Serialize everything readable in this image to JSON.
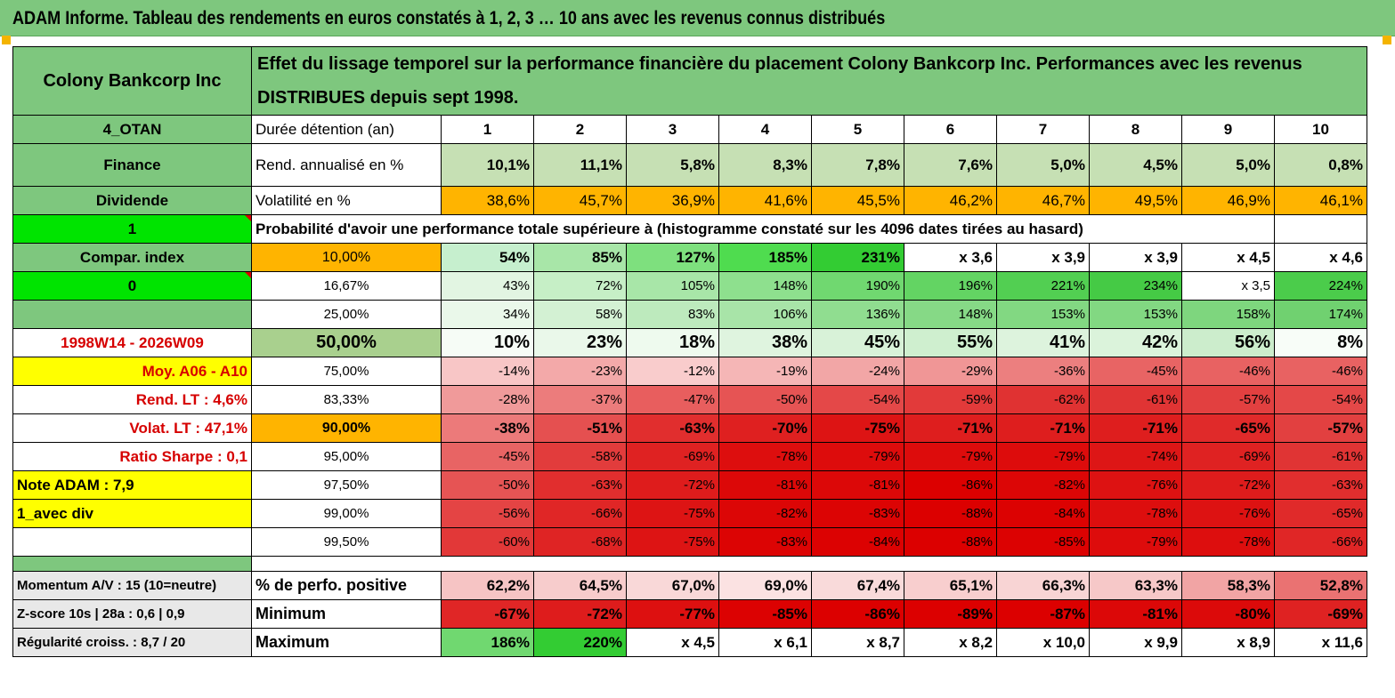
{
  "page_title": "ADAM Informe. Tableau des rendements en euros constatés à 1, 2, 3 … 10 ans avec les revenus connus distribués",
  "header": {
    "company": "Colony Bankcorp Inc",
    "description": "Effet du lissage temporel sur la performance financière du placement Colony Bankcorp Inc. Performances avec les revenus DISTRIBUES depuis sept 1998."
  },
  "info_rows": [
    {
      "left": "4_OTAN",
      "label": "Durée détention (an)",
      "values": [
        "1",
        "2",
        "3",
        "4",
        "5",
        "6",
        "7",
        "8",
        "9",
        "10"
      ]
    },
    {
      "left": "Finance",
      "label": "Rend. annualisé en %",
      "values": [
        "10,1%",
        "11,1%",
        "5,8%",
        "8,3%",
        "7,8%",
        "7,6%",
        "5,0%",
        "4,5%",
        "5,0%",
        "0,8%"
      ]
    },
    {
      "left": "Dividende",
      "label": "Volatilité en %",
      "values": [
        "38,6%",
        "45,7%",
        "36,9%",
        "41,6%",
        "45,5%",
        "46,2%",
        "46,7%",
        "49,5%",
        "46,9%",
        "46,1%"
      ]
    }
  ],
  "prob_row": {
    "left": "1",
    "label": "Probabilité d'avoir une performance totale supérieure à (histogramme constaté sur les 4096 dates tirées au hasard)"
  },
  "quantile_rows": [
    {
      "left": "Compar. index",
      "pct": "10,00%",
      "values": [
        "54%",
        "85%",
        "127%",
        "185%",
        "231%",
        "x 3,6",
        "x 3,9",
        "x 3,9",
        "x 4,5",
        "x 4,6"
      ],
      "colors": [
        "#c6efce",
        "#a8e6a8",
        "#7ee07e",
        "#4fdc4f",
        "#33cc33",
        "#ffffff",
        "#ffffff",
        "#ffffff",
        "#ffffff",
        "#ffffff"
      ]
    },
    {
      "left": "0",
      "pct": "16,67%",
      "values": [
        "43%",
        "72%",
        "105%",
        "148%",
        "190%",
        "196%",
        "221%",
        "234%",
        "x 3,5",
        "224%"
      ],
      "colors": [
        "#e2f5e2",
        "#c6efc6",
        "#a8e6a8",
        "#8ee08e",
        "#70d870",
        "#63d463",
        "#52cf52",
        "#45ca45",
        "#ffffff",
        "#4bcc4b"
      ]
    },
    {
      "left": "",
      "pct": "25,00%",
      "values": [
        "34%",
        "58%",
        "83%",
        "106%",
        "136%",
        "148%",
        "153%",
        "153%",
        "158%",
        "174%"
      ],
      "colors": [
        "#eaf8ea",
        "#d3f1d3",
        "#bdeabd",
        "#a8e4a8",
        "#90dd90",
        "#86d986",
        "#82d882",
        "#82d882",
        "#7ed67e",
        "#70d170"
      ]
    },
    {
      "left": "1998W14 - 2026W09",
      "pct": "50,00%",
      "values": [
        "10%",
        "23%",
        "18%",
        "38%",
        "45%",
        "55%",
        "41%",
        "42%",
        "56%",
        "8%"
      ],
      "colors": [
        "#f6fcf6",
        "#eaf8ea",
        "#eefaee",
        "#dff4df",
        "#d8f2d8",
        "#cfefcf",
        "#ddf3dd",
        "#dbf3db",
        "#ccedcc",
        "#f8fdf8"
      ]
    },
    {
      "left": "Moy. A06 - A10",
      "pct": "75,00%",
      "values": [
        "-14%",
        "-23%",
        "-12%",
        "-19%",
        "-24%",
        "-29%",
        "-36%",
        "-45%",
        "-46%",
        "-46%"
      ],
      "colors": [
        "#f8c6c6",
        "#f3a9a9",
        "#f9cccc",
        "#f5b6b6",
        "#f2a6a6",
        "#f09696",
        "#ec7f7f",
        "#e86464",
        "#e86262",
        "#e86262"
      ]
    },
    {
      "left": "Rend. LT :   4,6%",
      "pct": "83,33%",
      "values": [
        "-28%",
        "-37%",
        "-47%",
        "-50%",
        "-54%",
        "-59%",
        "-62%",
        "-61%",
        "-57%",
        "-54%"
      ],
      "colors": [
        "#f09a9a",
        "#ec7c7c",
        "#e85e5e",
        "#e65454",
        "#e44848",
        "#e23a3a",
        "#e03232",
        "#e03434",
        "#e24040",
        "#e44848"
      ]
    },
    {
      "left": "Volat. LT :   47,1%",
      "pct": "90,00%",
      "values": [
        "-38%",
        "-51%",
        "-63%",
        "-70%",
        "-75%",
        "-71%",
        "-71%",
        "-71%",
        "-65%",
        "-57%"
      ],
      "colors": [
        "#ec7a7a",
        "#e55050",
        "#e12e2e",
        "#df2020",
        "#dd1414",
        "#de1e1e",
        "#de1e1e",
        "#de1e1e",
        "#e02a2a",
        "#e24040"
      ]
    },
    {
      "left": "Ratio Sharpe :    0,1",
      "pct": "95,00%",
      "values": [
        "-45%",
        "-58%",
        "-69%",
        "-78%",
        "-79%",
        "-79%",
        "-79%",
        "-74%",
        "-69%",
        "-61%"
      ],
      "colors": [
        "#e86464",
        "#e23c3c",
        "#df2222",
        "#dd0e0e",
        "#dd0c0c",
        "#dd0c0c",
        "#dd0c0c",
        "#dd1616",
        "#df2222",
        "#e03434"
      ]
    },
    {
      "left": "Note ADAM : 7,9",
      "pct": "97,50%",
      "values": [
        "-50%",
        "-63%",
        "-72%",
        "-81%",
        "-81%",
        "-86%",
        "-82%",
        "-76%",
        "-72%",
        "-63%"
      ],
      "colors": [
        "#e65454",
        "#e12e2e",
        "#de1c1c",
        "#dc0808",
        "#dc0808",
        "#dc0000",
        "#dc0606",
        "#dd1212",
        "#de1c1c",
        "#e12e2e"
      ]
    },
    {
      "left": "1_avec div",
      "pct": "99,00%",
      "values": [
        "-56%",
        "-66%",
        "-75%",
        "-82%",
        "-83%",
        "-88%",
        "-84%",
        "-78%",
        "-76%",
        "-65%"
      ],
      "colors": [
        "#e44444",
        "#e02626",
        "#dd1414",
        "#dc0606",
        "#dc0404",
        "#dc0000",
        "#dc0202",
        "#dd0e0e",
        "#dd1212",
        "#e02a2a"
      ]
    },
    {
      "left": "",
      "pct": "99,50%",
      "values": [
        "-60%",
        "-68%",
        "-75%",
        "-83%",
        "-84%",
        "-88%",
        "-85%",
        "-79%",
        "-78%",
        "-66%"
      ],
      "colors": [
        "#e23838",
        "#df2424",
        "#dd1414",
        "#dc0404",
        "#dc0202",
        "#dc0000",
        "#dc0202",
        "#dd0c0c",
        "#dd0e0e",
        "#e02626"
      ]
    }
  ],
  "bottom_rows": [
    {
      "left": "Momentum A/V : 15 (10=neutre)",
      "label": "% de perfo. positive",
      "values": [
        "62,2%",
        "64,5%",
        "67,0%",
        "69,0%",
        "67,4%",
        "65,1%",
        "66,3%",
        "63,3%",
        "58,3%",
        "52,8%"
      ],
      "colors": [
        "#f6c4c4",
        "#f7cccc",
        "#f9d8d8",
        "#fbe2e2",
        "#f9dada",
        "#f8cece",
        "#f8d4d4",
        "#f6c8c8",
        "#f1a4a4",
        "#ea7272"
      ]
    },
    {
      "left": "Z-score 10s | 28a : 0,6 | 0,9",
      "label": "Minimum",
      "values": [
        "-67%",
        "-72%",
        "-77%",
        "-85%",
        "-86%",
        "-89%",
        "-87%",
        "-81%",
        "-80%",
        "-69%"
      ],
      "colors": [
        "#e02626",
        "#de1c1c",
        "#dd1010",
        "#dc0202",
        "#dc0000",
        "#dc0000",
        "#dc0000",
        "#dc0808",
        "#dc0a0a",
        "#df2222"
      ]
    },
    {
      "left": "Régularité croiss. : 8,7 / 20",
      "label": "Maximum",
      "values": [
        "186%",
        "220%",
        "x 4,5",
        "x 6,1",
        "x 8,7",
        "x 8,2",
        "x 10,0",
        "x 9,9",
        "x 8,9",
        "x 11,6"
      ],
      "colors": [
        "#70d870",
        "#33cc33",
        "#ffffff",
        "#ffffff",
        "#ffffff",
        "#ffffff",
        "#ffffff",
        "#ffffff",
        "#ffffff",
        "#ffffff"
      ]
    }
  ],
  "colors": {
    "band_green": "#7ec77e",
    "orange": "#ffb400",
    "bright_green": "#00e400",
    "yellow": "#ffff00",
    "label_red": "#d60000"
  }
}
